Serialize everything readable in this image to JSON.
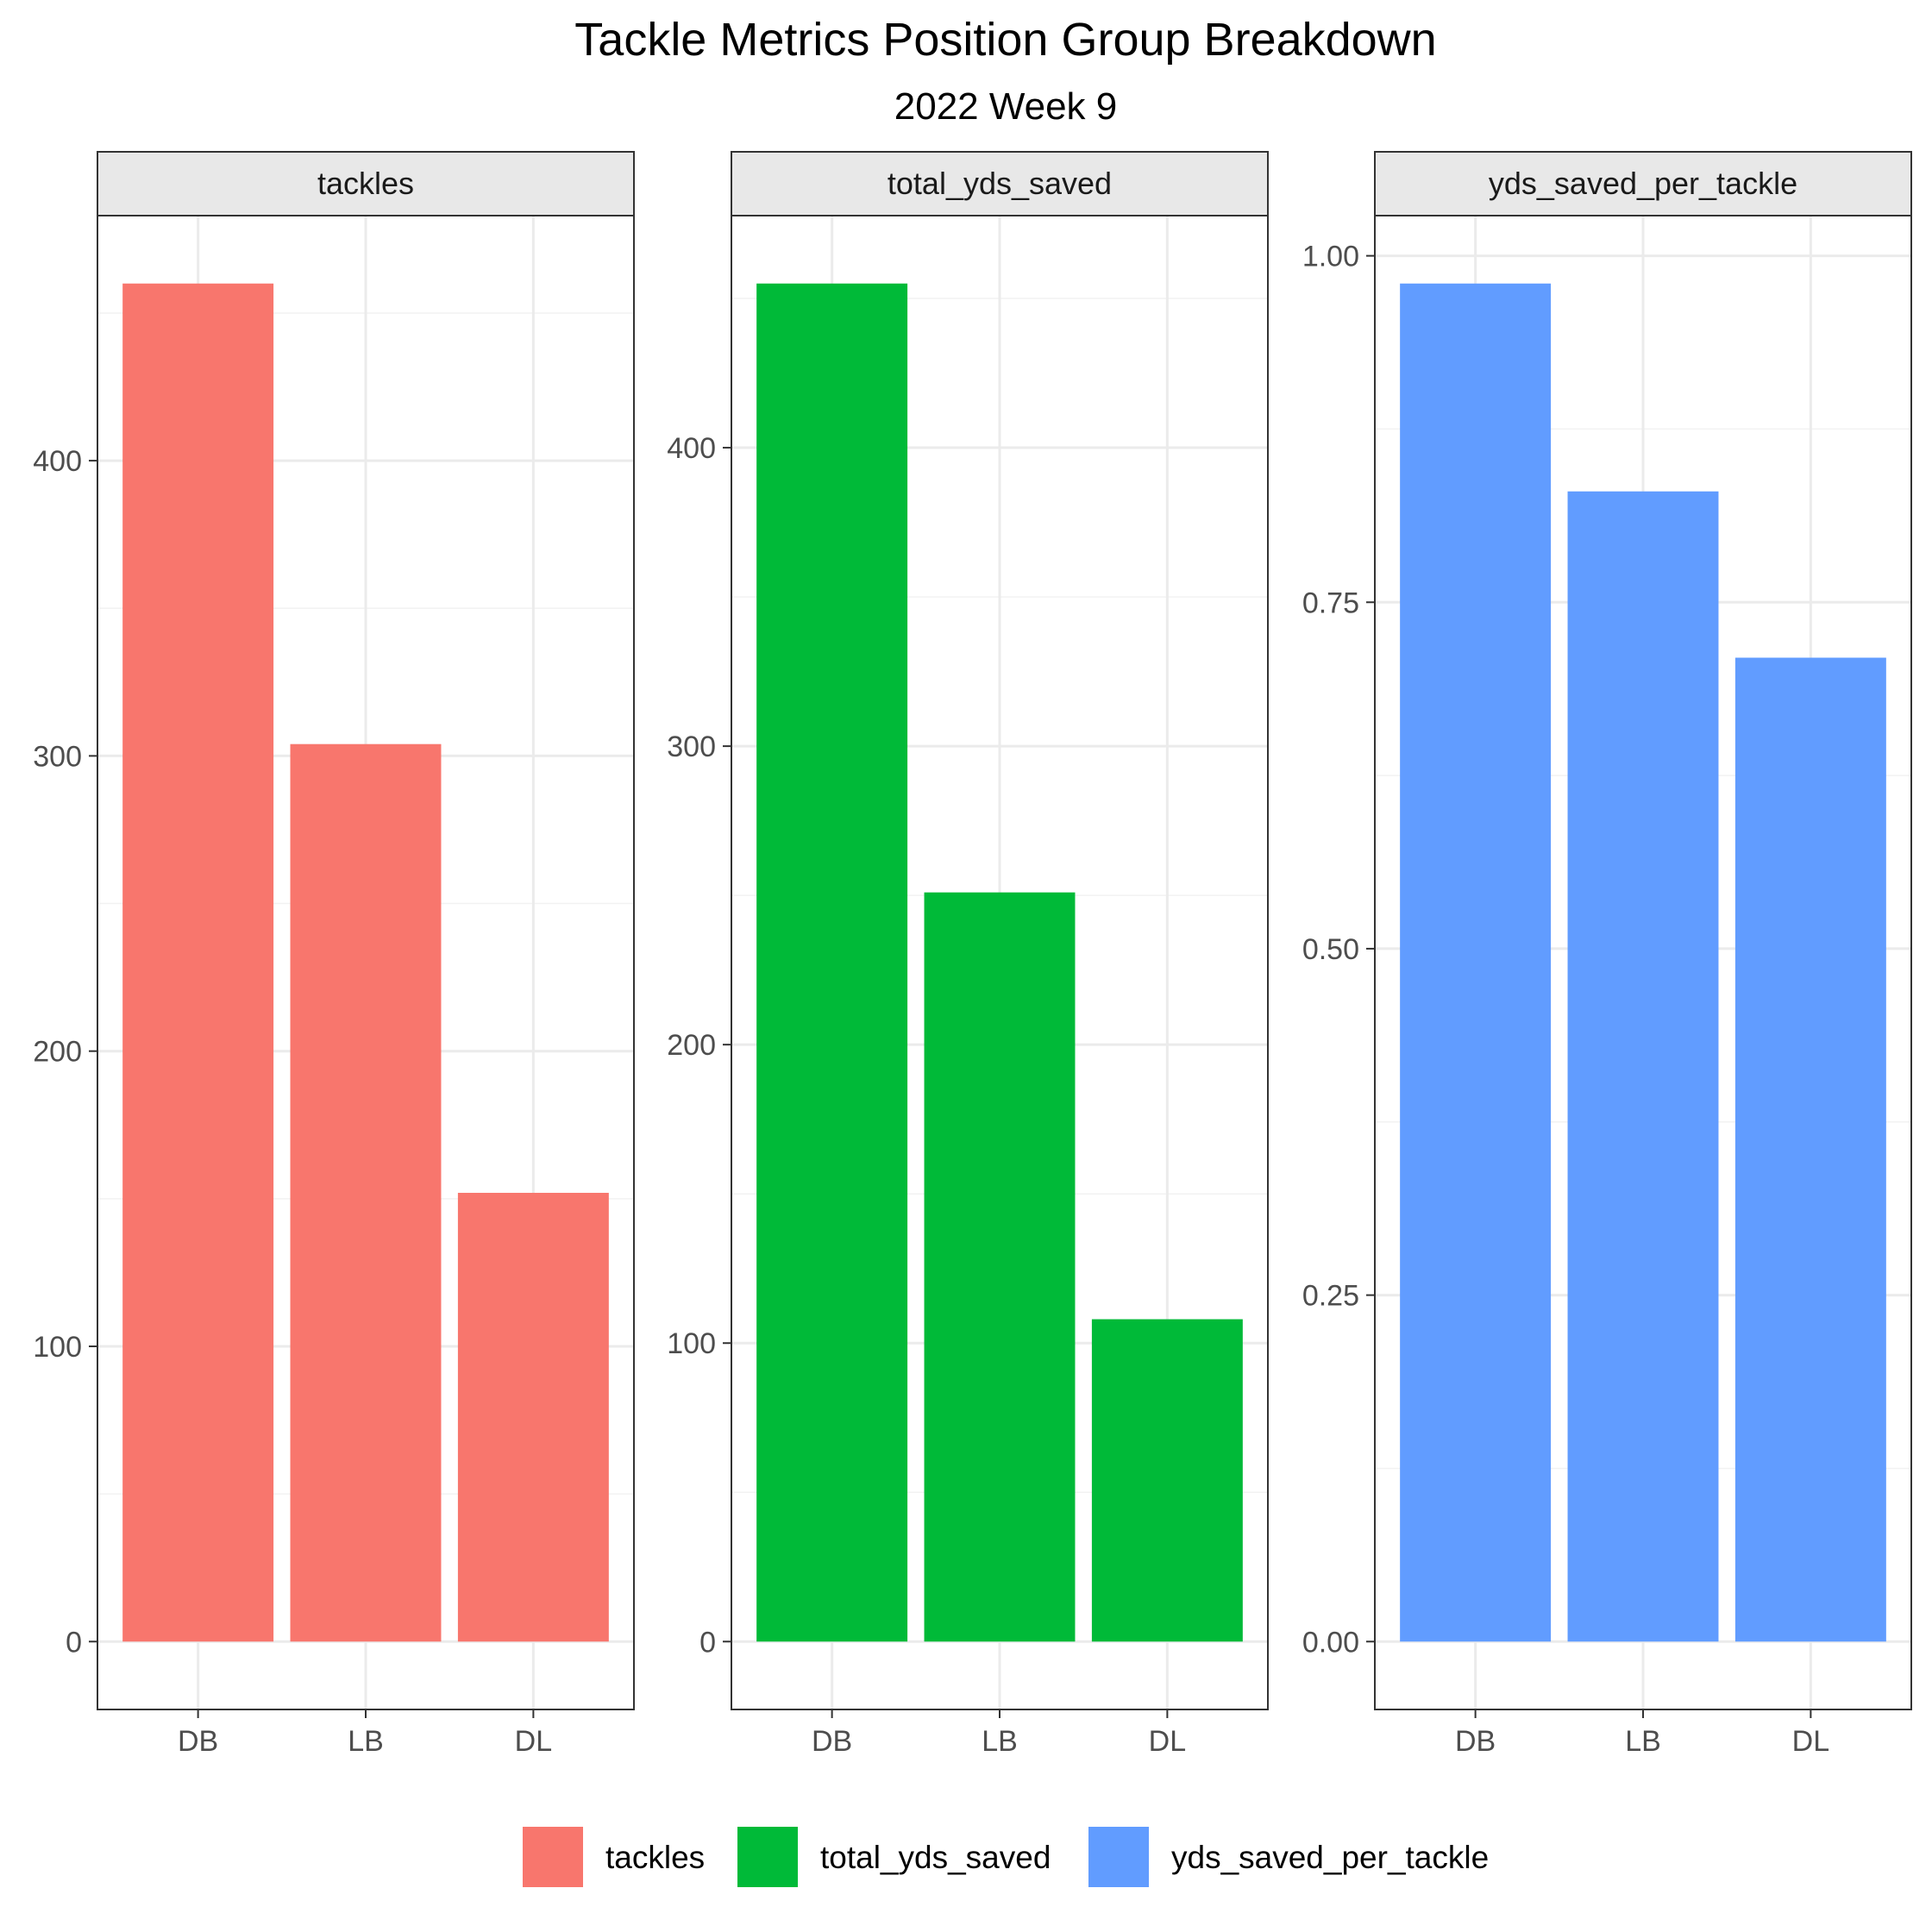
{
  "chart_data": {
    "type": "bar",
    "title": "Tackle Metrics Position Group Breakdown",
    "subtitle": "2022 Week 9",
    "categories": [
      "DB",
      "LB",
      "DL"
    ],
    "grid": true,
    "legend_position": "bottom",
    "panels": [
      {
        "name": "tackles",
        "color": "#F8766D",
        "values": [
          460,
          304,
          152
        ],
        "ylim": [
          -23,
          483
        ],
        "yticks": [
          0,
          100,
          200,
          300,
          400
        ],
        "ytick_labels": [
          "0",
          "100",
          "200",
          "300",
          "400"
        ]
      },
      {
        "name": "total_yds_saved",
        "color": "#00BA38",
        "values": [
          455,
          251,
          108
        ],
        "ylim": [
          -22.75,
          477.75
        ],
        "yticks": [
          0,
          100,
          200,
          300,
          400
        ],
        "ytick_labels": [
          "0",
          "100",
          "200",
          "300",
          "400"
        ]
      },
      {
        "name": "yds_saved_per_tackle",
        "color": "#619CFF",
        "values": [
          0.98,
          0.83,
          0.71
        ],
        "ylim": [
          -0.049,
          1.029
        ],
        "yticks": [
          0,
          0.25,
          0.5,
          0.75,
          1.0
        ],
        "ytick_labels": [
          "0.00",
          "0.25",
          "0.50",
          "0.75",
          "1.00"
        ]
      }
    ],
    "legend": [
      {
        "label": "tackles",
        "color": "#F8766D"
      },
      {
        "label": "total_yds_saved",
        "color": "#00BA38"
      },
      {
        "label": "yds_saved_per_tackle",
        "color": "#619CFF"
      }
    ]
  }
}
